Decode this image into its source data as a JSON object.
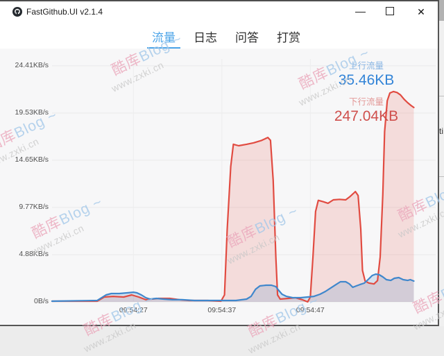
{
  "window": {
    "title": "FastGithub.UI v2.1.4"
  },
  "titlebar": {
    "close_glyph": "✕"
  },
  "tabs": [
    {
      "label": "流量",
      "active": true
    },
    {
      "label": "日志",
      "active": false
    },
    {
      "label": "问答",
      "active": false
    },
    {
      "label": "打赏",
      "active": false
    }
  ],
  "legend": {
    "upload_label": "上行流量",
    "upload_value": "35.46KB",
    "download_label": "下行流量",
    "download_value": "247.04KB"
  },
  "colors": {
    "accent_blue": "#4aa3e8",
    "upload_line": "#3f87cc",
    "upload_fill": "rgba(80,140,200,0.20)",
    "download_line": "#e14b41",
    "download_fill": "rgba(231,88,77,0.17)",
    "grid": "#e9e9ea",
    "axis_text": "#4f4f4f"
  },
  "watermark": {
    "line1_cn": "酷库",
    "line1_en": "Blog",
    "squiggle": "~",
    "line2": "www.zxki.cn"
  },
  "background_window": {
    "fragment_text": "ti"
  },
  "chart_data": {
    "type": "area",
    "title": "",
    "xlabel": "",
    "ylabel": "KB/s",
    "grid": true,
    "legend_position": "top-right",
    "ylim": [
      0,
      26.2
    ],
    "xlim_seconds": [
      0,
      43.4
    ],
    "y_ticks": [
      {
        "label": "24.41KB/s",
        "value": 24.41
      },
      {
        "label": "19.53KB/s",
        "value": 19.53
      },
      {
        "label": "14.65KB/s",
        "value": 14.65
      },
      {
        "label": "9.77KB/s",
        "value": 9.77
      },
      {
        "label": "4.88KB/s",
        "value": 4.88
      },
      {
        "label": "0B/s",
        "value": 0
      }
    ],
    "x_ticks": [
      {
        "label": "09:54:27",
        "s": 9.2
      },
      {
        "label": "09:54:37",
        "s": 19.2
      },
      {
        "label": "09:54:47",
        "s": 29.2
      }
    ],
    "series": [
      {
        "name": "下行流量",
        "total": "247.04KB",
        "unit": "KB/s",
        "points": [
          [
            0,
            0.07
          ],
          [
            5.1,
            0.07
          ],
          [
            5.9,
            0.5
          ],
          [
            6.9,
            0.57
          ],
          [
            8.1,
            0.5
          ],
          [
            9,
            0.72
          ],
          [
            9.8,
            0.5
          ],
          [
            10.6,
            0.22
          ],
          [
            12,
            0.36
          ],
          [
            13.3,
            0.36
          ],
          [
            14.4,
            0.22
          ],
          [
            15.5,
            0.14
          ],
          [
            17.6,
            0.14
          ],
          [
            19.1,
            0.07
          ],
          [
            19.5,
            0.72
          ],
          [
            19.8,
            7.5
          ],
          [
            20.2,
            14.0
          ],
          [
            20.5,
            16.3
          ],
          [
            21.1,
            16.15
          ],
          [
            22,
            16.3
          ],
          [
            22.8,
            16.45
          ],
          [
            23.7,
            16.7
          ],
          [
            24.4,
            17.0
          ],
          [
            24.7,
            16.7
          ],
          [
            25,
            12.55
          ],
          [
            25.3,
            4.65
          ],
          [
            25.5,
            0.72
          ],
          [
            25.8,
            0.29
          ],
          [
            26.7,
            0.36
          ],
          [
            27.5,
            0.43
          ],
          [
            28.3,
            0.22
          ],
          [
            28.9,
            0.0
          ],
          [
            29.2,
            0.5
          ],
          [
            29.5,
            4.65
          ],
          [
            29.8,
            9.35
          ],
          [
            30.1,
            10.5
          ],
          [
            30.7,
            10.35
          ],
          [
            31.2,
            10.2
          ],
          [
            31.8,
            10.55
          ],
          [
            32.5,
            10.6
          ],
          [
            33.2,
            10.55
          ],
          [
            33.7,
            10.9
          ],
          [
            34.3,
            11.4
          ],
          [
            34.6,
            11.0
          ],
          [
            34.9,
            7.55
          ],
          [
            35.1,
            3.25
          ],
          [
            35.4,
            2.15
          ],
          [
            35.8,
            1.95
          ],
          [
            36.4,
            1.85
          ],
          [
            36.8,
            2.2
          ],
          [
            37.1,
            4.65
          ],
          [
            37.4,
            11.1
          ],
          [
            37.6,
            17.6
          ],
          [
            37.9,
            20.8
          ],
          [
            38.2,
            21.6
          ],
          [
            38.6,
            21.75
          ],
          [
            39,
            21.65
          ],
          [
            39.4,
            21.4
          ],
          [
            39.8,
            20.95
          ],
          [
            40.2,
            20.6
          ],
          [
            40.6,
            20.3
          ],
          [
            40.9,
            20.1
          ]
        ]
      },
      {
        "name": "上行流量",
        "total": "35.46KB",
        "unit": "KB/s",
        "points": [
          [
            0,
            0.07
          ],
          [
            5.1,
            0.14
          ],
          [
            5.6,
            0.43
          ],
          [
            6.1,
            0.72
          ],
          [
            6.7,
            0.86
          ],
          [
            7.6,
            0.86
          ],
          [
            8.5,
            0.93
          ],
          [
            9.2,
            1.0
          ],
          [
            9.6,
            0.93
          ],
          [
            10.1,
            0.72
          ],
          [
            10.6,
            0.43
          ],
          [
            11.1,
            0.29
          ],
          [
            11.8,
            0.36
          ],
          [
            12.6,
            0.29
          ],
          [
            13.6,
            0.22
          ],
          [
            14.7,
            0.22
          ],
          [
            16.1,
            0.14
          ],
          [
            18.4,
            0.14
          ],
          [
            20.8,
            0.14
          ],
          [
            22,
            0.29
          ],
          [
            22.5,
            0.57
          ],
          [
            23,
            1.3
          ],
          [
            23.5,
            1.65
          ],
          [
            24.2,
            1.72
          ],
          [
            24.8,
            1.72
          ],
          [
            25.3,
            1.58
          ],
          [
            25.6,
            1.22
          ],
          [
            26,
            0.79
          ],
          [
            26.5,
            0.57
          ],
          [
            27.2,
            0.43
          ],
          [
            28.1,
            0.43
          ],
          [
            28.9,
            0.5
          ],
          [
            29.6,
            0.57
          ],
          [
            30.3,
            0.79
          ],
          [
            30.9,
            1.08
          ],
          [
            31.5,
            1.43
          ],
          [
            32.1,
            1.79
          ],
          [
            32.6,
            2.08
          ],
          [
            33.2,
            2.08
          ],
          [
            33.6,
            1.87
          ],
          [
            34,
            1.51
          ],
          [
            34.4,
            1.65
          ],
          [
            34.8,
            1.79
          ],
          [
            35.3,
            1.94
          ],
          [
            35.8,
            2.37
          ],
          [
            36.2,
            2.73
          ],
          [
            36.6,
            2.87
          ],
          [
            37,
            2.8
          ],
          [
            37.4,
            2.58
          ],
          [
            37.8,
            2.3
          ],
          [
            38.3,
            2.22
          ],
          [
            38.7,
            2.44
          ],
          [
            39.2,
            2.51
          ],
          [
            39.7,
            2.3
          ],
          [
            40.2,
            2.22
          ],
          [
            40.5,
            2.3
          ],
          [
            40.9,
            2.15
          ]
        ]
      }
    ]
  }
}
